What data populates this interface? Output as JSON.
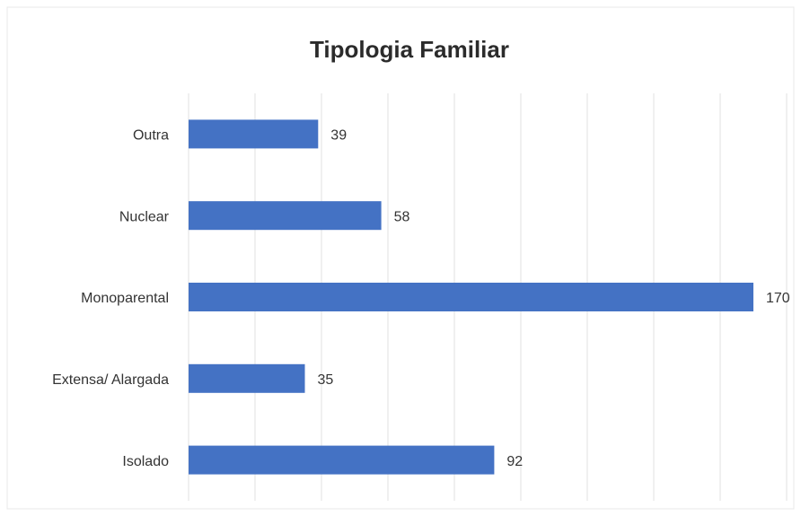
{
  "chart_data": {
    "type": "bar",
    "orientation": "horizontal",
    "title": "Tipologia Familiar",
    "categories": [
      "Outra",
      "Nuclear",
      "Monoparental",
      "Extensa/ Alargada",
      "Isolado"
    ],
    "values": [
      39,
      58,
      170,
      35,
      92
    ],
    "color": "#4472c4",
    "xlim": [
      0,
      180
    ],
    "xticks": [
      0,
      20,
      40,
      60,
      80,
      100,
      120,
      140,
      160,
      180
    ],
    "grid": true
  }
}
